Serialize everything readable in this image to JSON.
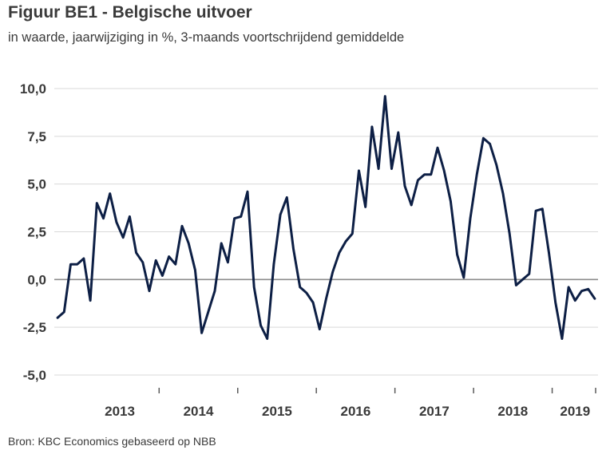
{
  "title": "Figuur BE1 - Belgische uitvoer",
  "subtitle": "in waarde, jaarwijziging in %, 3-maands voortschrijdend gemiddelde",
  "source": "Bron: KBC Economics gebaseerd op NBB",
  "colors": {
    "line": "#0d1f45",
    "grid": "#d9d9d9",
    "zero": "#8c8c8c",
    "text": "#3a3a3a"
  },
  "chart_data": {
    "type": "line",
    "title": "Figuur BE1 - Belgische uitvoer",
    "subtitle": "in waarde, jaarwijziging in %, 3-maands voortschrijdend gemiddelde",
    "xlabel": "",
    "ylabel": "",
    "ylim": [
      -5.0,
      10.0
    ],
    "yticks": [
      "10,0",
      "7,5",
      "5,0",
      "2,5",
      "0,0",
      "-2,5",
      "-5,0"
    ],
    "ytick_values": [
      10.0,
      7.5,
      5.0,
      2.5,
      0.0,
      -2.5,
      -5.0
    ],
    "xticks": [
      "2013",
      "2014",
      "2015",
      "2016",
      "2017",
      "2018",
      "2019"
    ],
    "grid": true,
    "legend": "none",
    "start": "2012-09",
    "frequency": "monthly",
    "series": [
      {
        "values": [
          -2.0,
          -1.7,
          0.8,
          0.8,
          1.1,
          -1.1,
          4.0,
          3.2,
          4.5,
          3.0,
          2.2,
          3.3,
          1.4,
          0.9,
          -0.6,
          1.0,
          0.2,
          1.2,
          0.8,
          2.8,
          1.9,
          0.5,
          -2.8,
          -1.7,
          -0.6,
          1.9,
          0.9,
          3.2,
          3.3,
          4.6,
          -0.4,
          -2.4,
          -3.1,
          0.8,
          3.4,
          4.3,
          1.6,
          -0.4,
          -0.7,
          -1.2,
          -2.6,
          -1.0,
          0.4,
          1.4,
          2.0,
          2.4,
          5.7,
          3.8,
          8.0,
          5.8,
          9.6,
          5.8,
          7.7,
          4.9,
          3.9,
          5.2,
          5.5,
          5.5,
          6.9,
          5.7,
          4.1,
          1.3,
          0.1,
          3.2,
          5.5,
          7.4,
          7.1,
          6.0,
          4.5,
          2.4,
          -0.3,
          0.0,
          0.3,
          3.6,
          3.7,
          1.4,
          -1.2,
          -3.1,
          -0.4,
          -1.1,
          -0.6,
          -0.5,
          -1.0
        ]
      }
    ]
  }
}
